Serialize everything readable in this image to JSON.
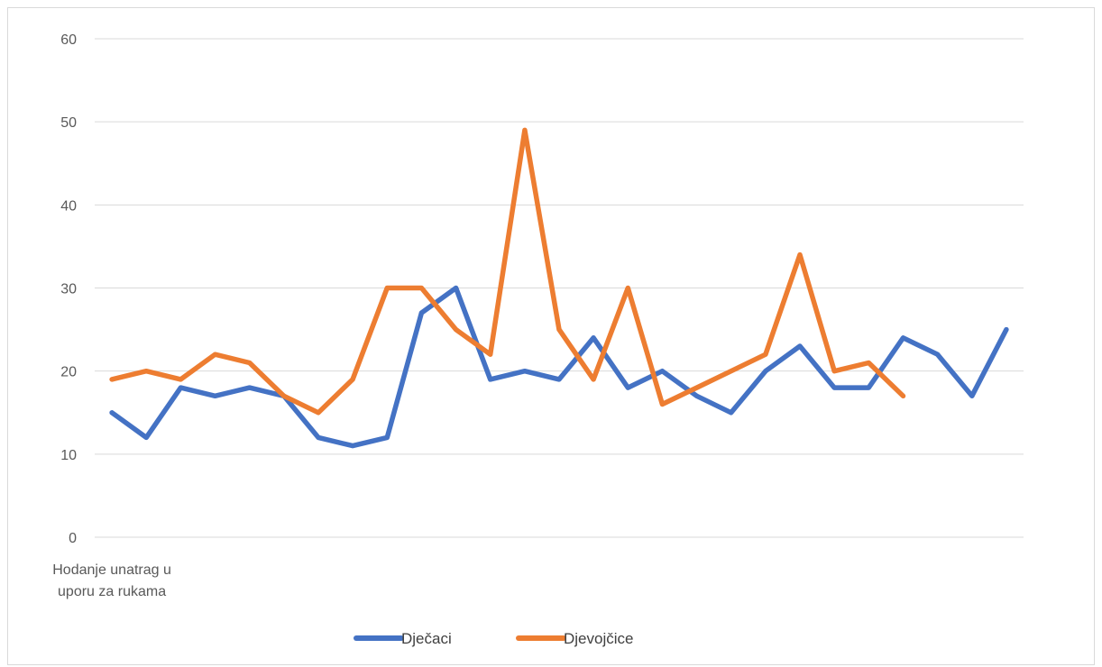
{
  "chart_data": {
    "type": "line",
    "title": "",
    "xlabel": "",
    "ylabel": "",
    "ylim": [
      0,
      60
    ],
    "yticks": [
      0,
      10,
      20,
      30,
      40,
      50,
      60
    ],
    "grid": true,
    "legend_position": "bottom",
    "categories": [
      "Hodanje unatrag u uporu za rukama",
      "",
      "",
      "",
      "",
      "",
      "",
      "",
      "",
      "",
      "",
      "",
      "",
      "",
      "",
      "",
      "",
      "",
      "",
      "",
      "",
      "",
      "",
      "",
      "",
      "",
      ""
    ],
    "series": [
      {
        "name": "Dječaci",
        "color": "#4472C4",
        "values": [
          15,
          12,
          18,
          17,
          18,
          17,
          12,
          11,
          12,
          27,
          30,
          19,
          20,
          19,
          24,
          18,
          20,
          17,
          15,
          20,
          23,
          18,
          18,
          24,
          22,
          17,
          25
        ]
      },
      {
        "name": "Djevojčice",
        "color": "#ED7D31",
        "values": [
          19,
          20,
          19,
          22,
          21,
          17,
          15,
          19,
          30,
          30,
          25,
          22,
          49,
          25,
          19,
          30,
          16,
          18,
          20,
          22,
          34,
          20,
          21,
          17,
          null,
          null,
          null
        ]
      }
    ]
  }
}
